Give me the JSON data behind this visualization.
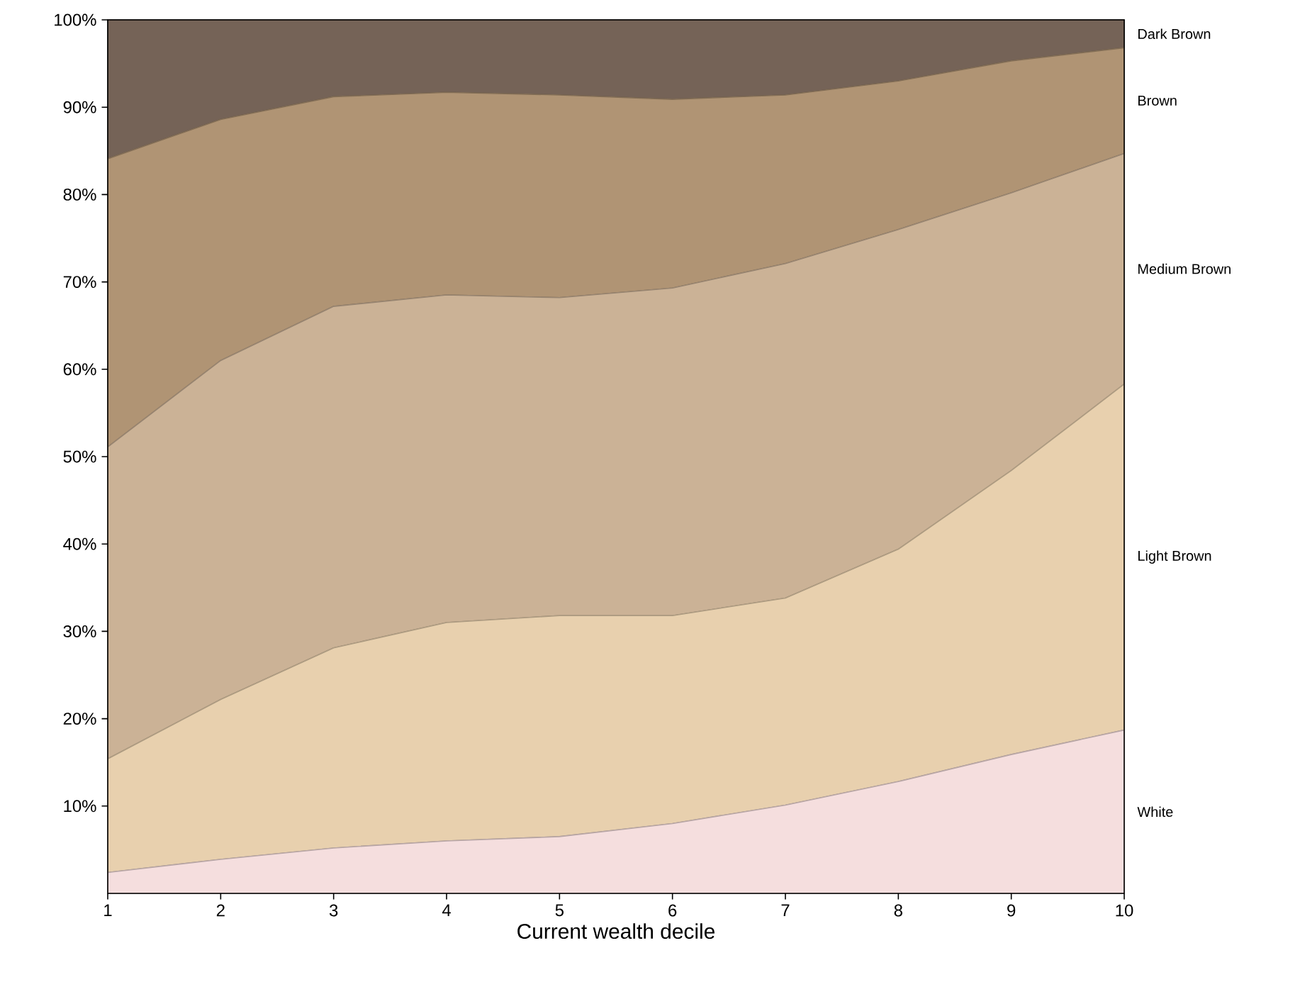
{
  "chart_data": {
    "type": "area",
    "stacked": true,
    "xlabel": "Current wealth decile",
    "x": [
      1,
      2,
      3,
      4,
      5,
      6,
      7,
      8,
      9,
      10
    ],
    "xlim": [
      1,
      10
    ],
    "xticks": [
      1,
      2,
      3,
      4,
      5,
      6,
      7,
      8,
      9,
      10
    ],
    "ylim": [
      0,
      100
    ],
    "yticks": [
      {
        "value": 10,
        "label": "10%"
      },
      {
        "value": 20,
        "label": "20%"
      },
      {
        "value": 30,
        "label": "30%"
      },
      {
        "value": 40,
        "label": "40%"
      },
      {
        "value": 50,
        "label": "50%"
      },
      {
        "value": 60,
        "label": "60%"
      },
      {
        "value": 70,
        "label": "70%"
      },
      {
        "value": 80,
        "label": "80%"
      },
      {
        "value": 90,
        "label": "90%"
      },
      {
        "value": 100,
        "label": "100%"
      }
    ],
    "legend": false,
    "series": [
      {
        "name": "White",
        "color": "#f5dede",
        "values": [
          2.4,
          3.9,
          5.2,
          6.0,
          6.5,
          8.0,
          10.1,
          12.8,
          15.9,
          18.7
        ]
      },
      {
        "name": "Light Brown",
        "color": "#e8d0ae",
        "values": [
          13.0,
          18.3,
          22.9,
          25.0,
          25.3,
          23.8,
          23.7,
          26.6,
          32.5,
          39.6
        ]
      },
      {
        "name": "Medium Brown",
        "color": "#cbb296",
        "values": [
          35.7,
          38.8,
          39.1,
          37.5,
          36.4,
          37.5,
          38.3,
          36.6,
          31.8,
          26.4
        ]
      },
      {
        "name": "Brown",
        "color": "#b09474",
        "values": [
          33.0,
          27.6,
          24.0,
          23.2,
          23.2,
          21.6,
          19.3,
          17.0,
          15.1,
          12.1
        ]
      },
      {
        "name": "Dark Brown",
        "color": "#756357",
        "values": [
          15.9,
          11.4,
          8.8,
          8.3,
          8.6,
          9.1,
          8.6,
          7.0,
          4.7,
          3.2
        ]
      }
    ]
  }
}
